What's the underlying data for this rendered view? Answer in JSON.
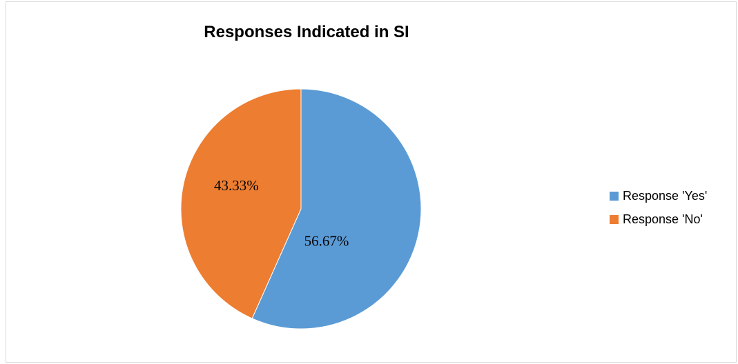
{
  "chart_data": {
    "type": "pie",
    "title": "Responses Indicated in SI",
    "categories": [
      "Response 'Yes'",
      "Response 'No'"
    ],
    "values": [
      56.67,
      43.33
    ],
    "data_labels": [
      "56.67%",
      "43.33%"
    ],
    "colors": [
      "#5B9BD5",
      "#ED7D31"
    ],
    "legend_position": "right",
    "start_angle": "12 o'clock",
    "direction": "clockwise"
  }
}
